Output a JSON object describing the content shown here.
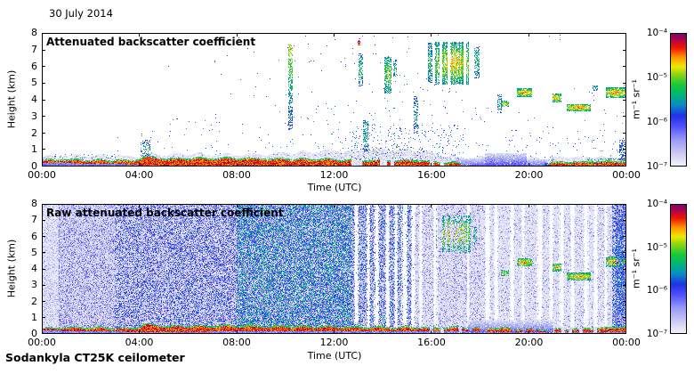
{
  "header": {
    "title": "30 July 2014"
  },
  "footer": {
    "instrument": "Sodankyla CT25K ceilometer"
  },
  "palette": [
    [
      0,
      "#f4f4fc"
    ],
    [
      0.1,
      "#c8c8f2"
    ],
    [
      0.2,
      "#9898f6"
    ],
    [
      0.3,
      "#5050fa"
    ],
    [
      0.38,
      "#1e32e6"
    ],
    [
      0.46,
      "#0a8ac8"
    ],
    [
      0.53,
      "#00b37d"
    ],
    [
      0.61,
      "#16c83c"
    ],
    [
      0.69,
      "#8cd414"
    ],
    [
      0.75,
      "#f0e800"
    ],
    [
      0.82,
      "#ff9500"
    ],
    [
      0.89,
      "#ee1800"
    ],
    [
      0.96,
      "#a80050"
    ],
    [
      1,
      "#700a70"
    ]
  ],
  "chart_data": [
    {
      "type": "heatmap",
      "title": "Attenuated backscatter coefficient",
      "xlabel": "Time (UTC)",
      "ylabel": "Height (km)",
      "x_range_hours": [
        0,
        24
      ],
      "y_range_km": [
        0,
        8
      ],
      "xticks": [
        "00:00",
        "04:00",
        "08:00",
        "12:00",
        "16:00",
        "20:00",
        "00:00"
      ],
      "yticks": [
        "0",
        "1",
        "2",
        "3",
        "4",
        "5",
        "6",
        "7",
        "8"
      ],
      "colorbar": {
        "unit": "m⁻¹ sr⁻¹",
        "ticks": [
          "10⁻⁴",
          "10⁻⁵",
          "10⁻⁶",
          "10⁻⁷"
        ],
        "scale": "log",
        "min": 1e-07,
        "max": 0.0001
      },
      "features": {
        "noise_bands_format": [
          "t0",
          "t1",
          "prob",
          "vlo",
          "vhi",
          "gamma",
          "bg_v"
        ],
        "noise_bands": [],
        "gap_stripes_format": [
          "t_center_h",
          "width_h"
        ],
        "gap_stripes": [],
        "speckles_format": [
          "t0",
          "t1",
          "h0_km",
          "h1_km",
          "density",
          "vlo",
          "vhi"
        ],
        "speckles": [
          [
            0.5,
            3.2,
            0.5,
            0.75,
            0.06,
            0.38,
            0.6
          ],
          [
            3,
            7,
            0.7,
            2.3,
            0.004,
            0.3,
            0.55
          ],
          [
            5,
            9,
            0.6,
            3.2,
            0.005,
            0.28,
            0.55
          ],
          [
            9,
            12.7,
            0.5,
            4.0,
            0.009,
            0.28,
            0.58
          ],
          [
            7,
            12.7,
            4.0,
            6.5,
            0.002,
            0.3,
            0.5
          ],
          [
            12.7,
            17.3,
            0.35,
            2.5,
            0.055,
            0.22,
            0.5
          ],
          [
            11.5,
            15.9,
            0.45,
            1.3,
            0.025,
            0.5,
            0.88
          ],
          [
            12.7,
            17.3,
            2.5,
            5.0,
            0.008,
            0.28,
            0.55
          ],
          [
            12.7,
            17.3,
            5.0,
            7.9,
            0.005,
            0.3,
            0.55
          ],
          [
            17.3,
            21,
            0.4,
            3.5,
            0.006,
            0.28,
            0.5
          ],
          [
            19,
            24,
            0.3,
            2.2,
            0.012,
            0.25,
            0.5
          ],
          [
            21,
            24,
            2.5,
            5,
            0.004,
            0.3,
            0.55
          ],
          [
            3,
            24,
            7.45,
            7.95,
            0.0015,
            0.3,
            0.5
          ],
          [
            6,
            12.7,
            6.5,
            7.9,
            0.0015,
            0.3,
            0.45
          ],
          [
            5,
            14,
            6,
            7.5,
            0.0008,
            0.85,
            0.98
          ]
        ],
        "clouds_format": [
          "t0",
          "t1",
          "h0_km",
          "h1_km",
          "core_v",
          "edge_v",
          "fill_prob",
          "streaky_prob",
          "vertical_fade",
          "jitter"
        ],
        "clouds": [
          [
            4.05,
            4.45,
            0.55,
            1.6,
            0.55,
            0.35,
            0.35,
            0,
            0,
            0.2
          ],
          [
            10.12,
            10.3,
            2.2,
            7.3,
            0.72,
            0.35,
            0.55,
            0,
            2,
            0.2
          ],
          [
            12.95,
            13.08,
            7.25,
            7.7,
            0.95,
            0.85,
            0.6,
            0,
            0,
            0.08
          ],
          [
            13.0,
            13.18,
            4.8,
            6.8,
            0.62,
            0.42,
            0.5,
            0,
            0,
            0.18
          ],
          [
            13.2,
            13.42,
            0.9,
            2.8,
            0.58,
            0.4,
            0.45,
            0,
            0,
            0.18
          ],
          [
            14.08,
            14.35,
            4.4,
            6.6,
            0.72,
            0.48,
            0.6,
            0,
            0,
            0.2
          ],
          [
            14.42,
            14.58,
            5.4,
            6.4,
            0.6,
            0.42,
            0.45,
            0,
            0,
            0.18
          ],
          [
            15.28,
            15.45,
            2.0,
            4.2,
            0.52,
            0.38,
            0.4,
            0,
            0,
            0.18
          ],
          [
            15.85,
            16.02,
            5.0,
            7.4,
            0.6,
            0.42,
            0.55,
            0,
            0,
            0.18
          ],
          [
            16.15,
            17.65,
            4.9,
            7.45,
            0.8,
            0.5,
            0.62,
            0.82,
            0,
            0.22
          ],
          [
            17.75,
            17.97,
            5.3,
            7.2,
            0.6,
            0.42,
            0.5,
            0,
            0,
            0.18
          ],
          [
            18.7,
            18.88,
            3.2,
            4.3,
            0.52,
            0.38,
            0.45,
            0,
            0,
            0.18
          ],
          [
            18.85,
            19.18,
            3.55,
            3.95,
            0.78,
            0.48,
            0.7,
            0,
            0,
            0.2
          ],
          [
            19.5,
            20.12,
            4.15,
            4.68,
            0.88,
            0.5,
            0.85,
            0,
            0,
            0.2
          ],
          [
            20.95,
            21.32,
            3.85,
            4.35,
            0.85,
            0.5,
            0.78,
            0,
            0,
            0.2
          ],
          [
            21.55,
            22.55,
            3.3,
            3.76,
            0.88,
            0.5,
            0.85,
            0,
            0,
            0.2
          ],
          [
            22.6,
            22.82,
            4.55,
            4.88,
            0.58,
            0.42,
            0.5,
            0,
            0,
            0.18
          ],
          [
            23.15,
            24,
            4.1,
            4.75,
            0.88,
            0.5,
            0.85,
            0,
            0,
            0.2
          ],
          [
            17.0,
            18.2,
            0,
            0.5,
            0.3,
            0.06,
            0.92,
            0,
            1,
            0.1
          ],
          [
            18.2,
            19.9,
            0,
            0.8,
            0.32,
            0.06,
            0.92,
            0,
            1,
            0.1
          ],
          [
            19.9,
            20.75,
            0,
            0.45,
            0.28,
            0.06,
            0.9,
            0,
            1,
            0.1
          ],
          [
            20.65,
            24,
            0,
            0.2,
            0.5,
            0.32,
            0.9,
            0,
            0,
            0.15
          ],
          [
            22.35,
            24,
            0.12,
            0.5,
            0.8,
            0.45,
            0.3,
            0,
            0,
            0.25
          ],
          [
            23.7,
            24,
            0.3,
            1.6,
            0.5,
            0.32,
            0.45,
            0,
            0,
            0.18
          ]
        ],
        "boundary_layer": {
          "t": [
            0,
            2,
            3.8,
            4.25,
            4.6,
            5.5,
            8,
            12.6,
            14,
            15.5,
            17,
            17.5,
            20.6,
            21,
            22.3,
            24
          ],
          "grey_top": [
            0.6,
            0.62,
            0.55,
            0.6,
            0.65,
            0.7,
            0.65,
            0.9,
            1.0,
            0.9,
            0.5,
            0.45,
            0.45,
            0.5,
            0.5,
            0.55
          ],
          "red_hi": [
            0.32,
            0.3,
            0.26,
            0.5,
            0.42,
            0.38,
            0.4,
            0.3,
            0.28,
            0.25,
            0.1,
            0.02,
            0.02,
            0.15,
            0.18,
            0.22
          ],
          "red_lo": [
            0.2,
            0.18,
            0.12,
            0.05,
            0.02,
            0.02,
            0.02,
            0.02,
            0.05,
            0.05,
            0.02,
            0,
            0,
            0.02,
            0.03,
            0.05
          ],
          "patchy": [
            [
              12.6,
              17,
              0.3
            ]
          ]
        }
      }
    },
    {
      "type": "heatmap",
      "title": "Raw attenuated backscatter coefficient",
      "xlabel": "Time (UTC)",
      "ylabel": "Height (km)",
      "x_range_hours": [
        0,
        24
      ],
      "y_range_km": [
        0,
        8
      ],
      "xticks": [
        "00:00",
        "04:00",
        "08:00",
        "12:00",
        "16:00",
        "20:00",
        "00:00"
      ],
      "yticks": [
        "0",
        "1",
        "2",
        "3",
        "4",
        "5",
        "6",
        "7",
        "8"
      ],
      "colorbar": {
        "unit": "m⁻¹ sr⁻¹",
        "ticks": [
          "10⁻⁴",
          "10⁻⁵",
          "10⁻⁶",
          "10⁻⁷"
        ],
        "scale": "log",
        "min": 1e-07,
        "max": 0.0001
      },
      "features": {
        "noise_bands_format": [
          "t0",
          "t1",
          "prob",
          "vlo",
          "vhi",
          "gamma",
          "bg_v"
        ],
        "noise_bands": [
          [
            0,
            0.7,
            0.45,
            0.02,
            0.22,
            1.6,
            0.02
          ],
          [
            0.7,
            3,
            0.7,
            0.04,
            0.32,
            1.5,
            0.03
          ],
          [
            3,
            8,
            0.82,
            0.04,
            0.45,
            1.6,
            0.03
          ],
          [
            8,
            12.7,
            0.88,
            0.04,
            0.6,
            1.2,
            0.03
          ],
          [
            12.7,
            15.3,
            0.8,
            0.04,
            0.5,
            1.5,
            0.03
          ],
          [
            15.3,
            18,
            0.5,
            0.02,
            0.3,
            1.8,
            0.02
          ],
          [
            18,
            23.4,
            0.35,
            0.02,
            0.28,
            1.8,
            0.02
          ],
          [
            23.4,
            24,
            0.8,
            0.04,
            0.5,
            1.4,
            0.03
          ]
        ],
        "gap_stripes_format": [
          "t_center_h",
          "width_h"
        ],
        "gap_stripes": [
          [
            12.9,
            0.1
          ],
          [
            13.4,
            0.08
          ],
          [
            13.75,
            0.12
          ],
          [
            14.2,
            0.1
          ],
          [
            14.55,
            0.08
          ],
          [
            14.9,
            0.14
          ],
          [
            15.25,
            0.1
          ],
          [
            15.55,
            0.08
          ],
          [
            16.15,
            0.1
          ],
          [
            17.5,
            0.06
          ],
          [
            18.3,
            0.12
          ],
          [
            18.65,
            0.1
          ],
          [
            19.3,
            0.1
          ],
          [
            19.75,
            0.08
          ],
          [
            20.45,
            0.14
          ],
          [
            20.9,
            0.1
          ],
          [
            21.35,
            0.12
          ],
          [
            21.8,
            0.1
          ],
          [
            22.35,
            0.12
          ],
          [
            22.75,
            0.1
          ],
          [
            23.15,
            0.08
          ]
        ],
        "speckles_format": [
          "t0",
          "t1",
          "h0_km",
          "h1_km",
          "density",
          "vlo",
          "vhi"
        ],
        "speckles": [
          [
            5,
            15.3,
            0.3,
            0.6,
            0.03,
            0.6,
            0.9
          ],
          [
            12.7,
            15.3,
            0.25,
            0.6,
            0.05,
            0.55,
            0.9
          ],
          [
            15.3,
            23.4,
            0.3,
            1.2,
            0.01,
            0.25,
            0.45
          ]
        ],
        "clouds_format": [
          "t0",
          "t1",
          "h0_km",
          "h1_km",
          "core_v",
          "edge_v",
          "fill_prob",
          "streaky_prob",
          "vertical_fade",
          "jitter"
        ],
        "clouds": [
          [
            16.2,
            17.6,
            5.0,
            7.3,
            0.78,
            0.5,
            0.4,
            0.7,
            0,
            0.22
          ],
          [
            17.7,
            17.88,
            5.5,
            6.6,
            0.6,
            0.42,
            0.4,
            0,
            0,
            0.18
          ],
          [
            18.85,
            19.18,
            3.55,
            3.95,
            0.75,
            0.48,
            0.6,
            0,
            0,
            0.2
          ],
          [
            19.5,
            20.12,
            4.15,
            4.68,
            0.86,
            0.5,
            0.8,
            0,
            0,
            0.2
          ],
          [
            20.95,
            21.32,
            3.85,
            4.35,
            0.84,
            0.5,
            0.75,
            0,
            0,
            0.2
          ],
          [
            21.55,
            22.55,
            3.3,
            3.76,
            0.86,
            0.5,
            0.8,
            0,
            0,
            0.2
          ],
          [
            23.15,
            24,
            4.1,
            4.75,
            0.86,
            0.5,
            0.8,
            0,
            0,
            0.2
          ],
          [
            17.5,
            21.0,
            0,
            0.85,
            0.3,
            0.05,
            0.85,
            0,
            1,
            0.1
          ],
          [
            23.55,
            24,
            0,
            7.95,
            0.4,
            0.25,
            0.65,
            0,
            0,
            0.35
          ],
          [
            23.4,
            24,
            0,
            0.4,
            0.9,
            0.6,
            0.9,
            0,
            0,
            0.15
          ]
        ],
        "boundary_layer": {
          "t": [
            0,
            2,
            3.8,
            4.25,
            4.6,
            5.5,
            8,
            12.6,
            15,
            17,
            19,
            21,
            22,
            23.4,
            24
          ],
          "grey_top": [
            0.55,
            0.55,
            0.5,
            0.55,
            0.6,
            0.65,
            0.6,
            0.55,
            0.5,
            0.5,
            0.45,
            0.4,
            0.4,
            0.45,
            0.5
          ],
          "red_hi": [
            0.3,
            0.3,
            0.25,
            0.5,
            0.42,
            0.38,
            0.4,
            0.32,
            0.3,
            0.28,
            0.25,
            0.18,
            0.2,
            0.3,
            0.4
          ],
          "red_lo": [
            0.2,
            0.18,
            0.12,
            0.08,
            0.1,
            0.12,
            0.15,
            0.15,
            0.15,
            0.15,
            0.12,
            0.1,
            0.1,
            0.1,
            0.1
          ],
          "patchy": [
            [
              15,
              23.4,
              0.3
            ]
          ]
        }
      }
    }
  ]
}
